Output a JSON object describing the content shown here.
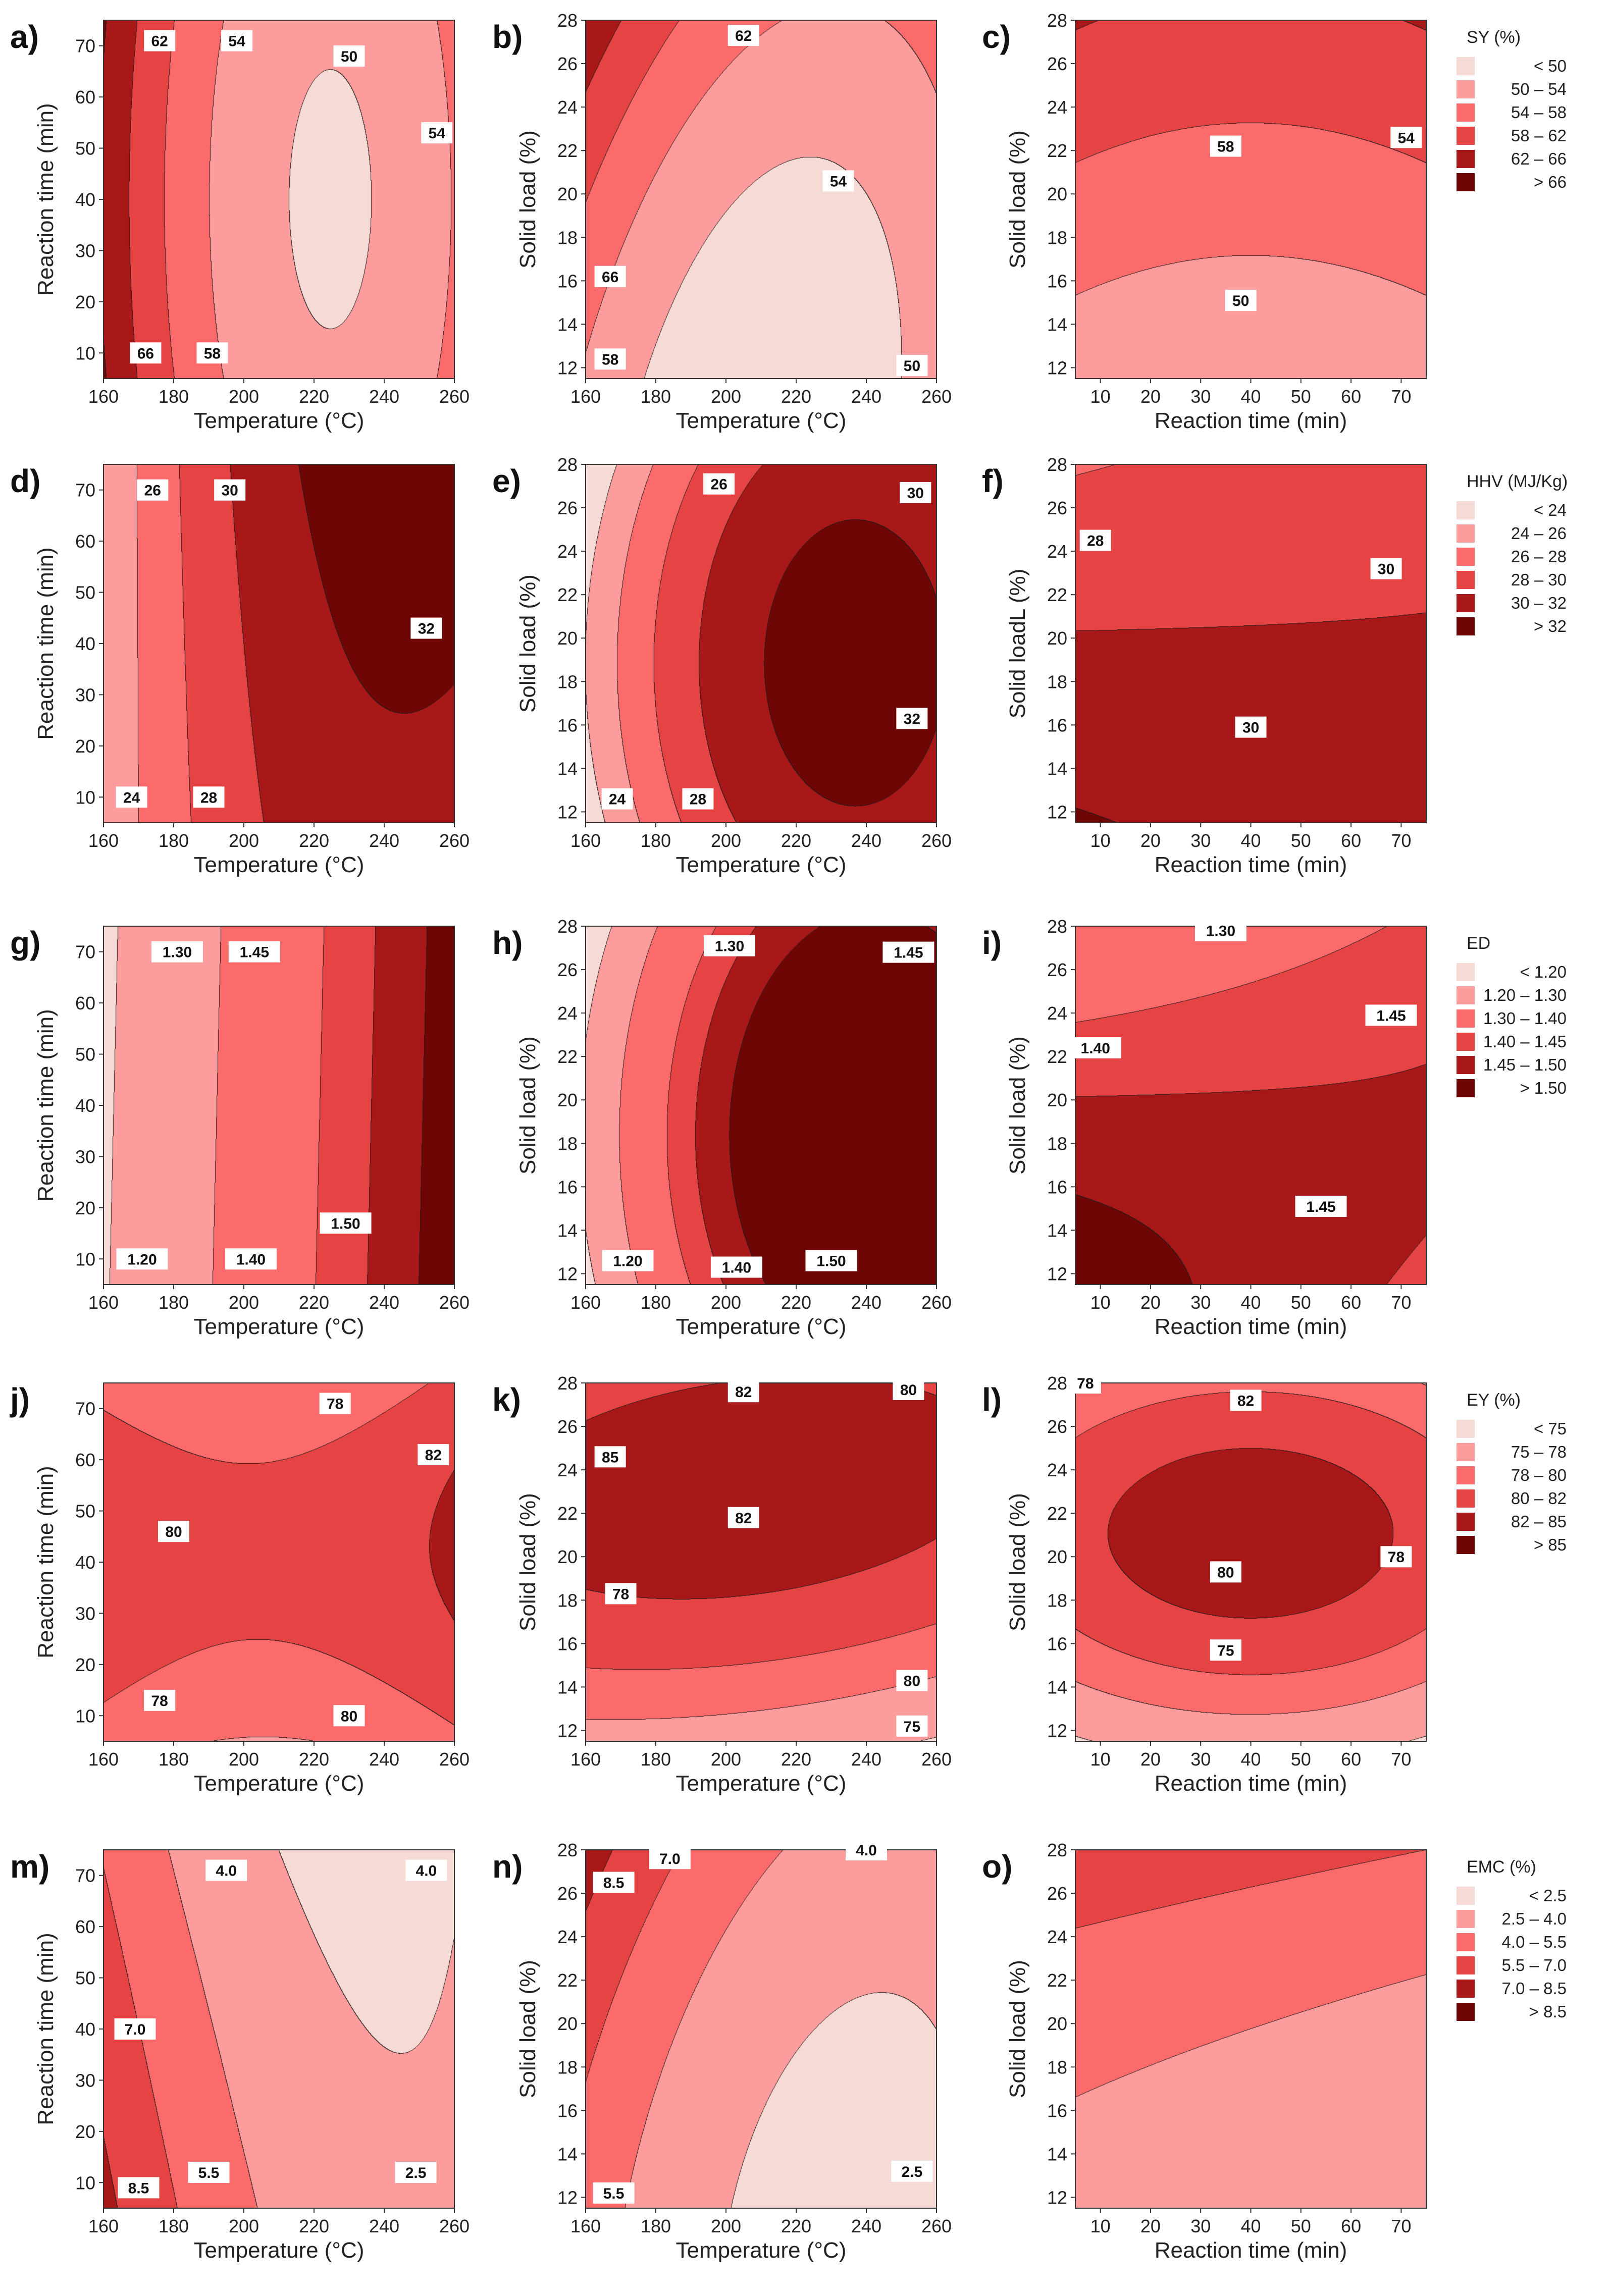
{
  "figure": {
    "palette": [
      "#f5dad5",
      "#fc9c9c",
      "#fc6b6b",
      "#e64444",
      "#a81818",
      "#6f0606"
    ],
    "line_color": "#1a1a1a",
    "legends": [
      {
        "row": 0,
        "title": "SY (%)",
        "items": [
          "<  50",
          "50  –  54",
          "54  –  58",
          "58  –  62",
          "62  –  66",
          ">  66"
        ]
      },
      {
        "row": 1,
        "title": "HHV (MJ/Kg)",
        "items": [
          "<  24",
          "24  –  26",
          "26  –  28",
          "28  –  30",
          "30  –  32",
          ">  32"
        ]
      },
      {
        "row": 2,
        "title": "ED",
        "items": [
          "<  1.20",
          "1.20  –  1.30",
          "1.30  –  1.40",
          "1.40  –  1.45",
          "1.45  –  1.50",
          ">  1.50"
        ]
      },
      {
        "row": 3,
        "title": "EY (%)",
        "items": [
          "<  75",
          "75  –  78",
          "78  –  80",
          "80  –  82",
          "82  –  85",
          ">  85"
        ]
      },
      {
        "row": 4,
        "title": "EMC (%)",
        "items": [
          "<  2.5",
          "2.5  –  4.0",
          "4.0  –  5.5",
          "5.5  –  7.0",
          "7.0  –  8.5",
          ">  8.5"
        ]
      }
    ]
  },
  "chart_data": [
    {
      "id": "a",
      "panel_label": "a)",
      "type": "contour",
      "xlabel": "Temperature (°C)",
      "ylabel": "Reaction time (min)",
      "xlim": [
        160,
        260
      ],
      "ylim": [
        5,
        75
      ],
      "xticks": [
        160,
        180,
        200,
        220,
        240,
        260
      ],
      "yticks": [
        10,
        20,
        30,
        40,
        50,
        60,
        70
      ],
      "response": "SY (%)",
      "field": {
        "kind": "quad",
        "c": 50.3,
        "x": -5.6,
        "y": 0,
        "xx": 9.5,
        "yy": 1.0,
        "xy": 0
      },
      "levels": [
        50,
        54,
        58,
        62,
        66
      ],
      "contour_labels": [
        {
          "text": "62",
          "x": 176,
          "y": 71
        },
        {
          "text": "54",
          "x": 198,
          "y": 71
        },
        {
          "text": "50",
          "x": 230,
          "y": 68
        },
        {
          "text": "54",
          "x": 255,
          "y": 53
        },
        {
          "text": "66",
          "x": 172,
          "y": 10
        },
        {
          "text": "58",
          "x": 191,
          "y": 10
        }
      ]
    },
    {
      "id": "b",
      "panel_label": "b)",
      "type": "contour",
      "xlabel": "Temperature (°C)",
      "ylabel": "Solid load (%)",
      "xlim": [
        160,
        260
      ],
      "ylim": [
        11.5,
        28
      ],
      "xticks": [
        160,
        180,
        200,
        220,
        240,
        260
      ],
      "yticks": [
        12,
        14,
        16,
        18,
        20,
        22,
        24,
        26,
        28
      ],
      "response": "SY (%)",
      "field": {
        "kind": "quad",
        "c": 49.5,
        "x": -2.8,
        "y": 3.8,
        "xx": 5.8,
        "yy": 1.2,
        "xy": -2.0
      },
      "levels": [
        50,
        54,
        58,
        62,
        66
      ],
      "contour_labels": [
        {
          "text": "62",
          "x": 205,
          "y": 27.3
        },
        {
          "text": "54",
          "x": 232,
          "y": 20.6
        },
        {
          "text": "66",
          "x": 167,
          "y": 16.2
        },
        {
          "text": "58",
          "x": 167,
          "y": 12.4
        },
        {
          "text": "50",
          "x": 253,
          "y": 12.1
        }
      ]
    },
    {
      "id": "c",
      "panel_label": "c)",
      "type": "contour",
      "xlabel": "Reaction time (min)",
      "ylabel": "Solid load (%)",
      "xlim": [
        5,
        75
      ],
      "ylim": [
        11.5,
        28
      ],
      "xticks": [
        10,
        20,
        30,
        40,
        50,
        60,
        70
      ],
      "yticks": [
        12,
        14,
        16,
        18,
        20,
        22,
        24,
        26,
        28
      ],
      "response": "SY (%)",
      "field": {
        "kind": "quad",
        "c": 55.7,
        "x": 0,
        "y": 5.4,
        "xx": 1.2,
        "yy": 0,
        "xy": 0
      },
      "levels": [
        50,
        54,
        58,
        62,
        66
      ],
      "contour_labels": [
        {
          "text": "58",
          "x": 35,
          "y": 22.2
        },
        {
          "text": "54",
          "x": 71,
          "y": 22.6
        },
        {
          "text": "50",
          "x": 38,
          "y": 15.1
        }
      ]
    },
    {
      "id": "d",
      "panel_label": "d)",
      "type": "contour",
      "xlabel": "Temperature (°C)",
      "ylabel": "Reaction time (min)",
      "xlim": [
        160,
        260
      ],
      "ylim": [
        5,
        75
      ],
      "xticks": [
        160,
        180,
        200,
        220,
        240,
        260
      ],
      "yticks": [
        10,
        20,
        30,
        40,
        50,
        60,
        70
      ],
      "response": "HHV (MJ/Kg)",
      "field": {
        "kind": "quad",
        "c": 30.9,
        "x": 4.0,
        "y": 0.6,
        "xx": -2.6,
        "yy": 0,
        "xy": 0.7
      },
      "levels": [
        24,
        26,
        28,
        30,
        32
      ],
      "contour_labels": [
        {
          "text": "26",
          "x": 174,
          "y": 70
        },
        {
          "text": "30",
          "x": 196,
          "y": 70
        },
        {
          "text": "32",
          "x": 252,
          "y": 43
        },
        {
          "text": "24",
          "x": 168,
          "y": 10
        },
        {
          "text": "28",
          "x": 190,
          "y": 10
        }
      ]
    },
    {
      "id": "e",
      "panel_label": "e)",
      "type": "contour",
      "xlabel": "Temperature (°C)",
      "ylabel": "Solid load (%)",
      "xlim": [
        160,
        260
      ],
      "ylim": [
        11.5,
        28
      ],
      "xticks": [
        160,
        180,
        200,
        220,
        240,
        260
      ],
      "yticks": [
        12,
        14,
        16,
        18,
        20,
        22,
        24,
        26,
        28
      ],
      "response": "HHV (MJ/Kg)",
      "field": {
        "kind": "quad",
        "c": 31.9,
        "x": 4.1,
        "y": -0.35,
        "xx": -3.8,
        "yy": -1.6,
        "xy": 0
      },
      "levels": [
        24,
        26,
        28,
        30,
        32
      ],
      "contour_labels": [
        {
          "text": "26",
          "x": 198,
          "y": 27.1
        },
        {
          "text": "30",
          "x": 254,
          "y": 26.7
        },
        {
          "text": "32",
          "x": 253,
          "y": 16.3
        },
        {
          "text": "24",
          "x": 169,
          "y": 12.6
        },
        {
          "text": "28",
          "x": 192,
          "y": 12.6
        }
      ]
    },
    {
      "id": "f",
      "panel_label": "f)",
      "type": "contour",
      "xlabel": "Reaction time (min)",
      "ylabel": "Solid loadL (%)",
      "xlim": [
        5,
        75
      ],
      "ylim": [
        11.5,
        28
      ],
      "xticks": [
        10,
        20,
        30,
        40,
        50,
        60,
        70
      ],
      "yticks": [
        12,
        14,
        16,
        18,
        20,
        22,
        24,
        26,
        28
      ],
      "response": "HHV (MJ/Kg)",
      "field": {
        "kind": "quad",
        "c": 30.15,
        "x": 0,
        "y": -1.5,
        "xx": 0,
        "yy": -0.15,
        "xy": 0.65
      },
      "levels": [
        24,
        26,
        28,
        30,
        32
      ],
      "contour_labels": [
        {
          "text": "28",
          "x": 9,
          "y": 24.5
        },
        {
          "text": "30",
          "x": 67,
          "y": 23.2
        },
        {
          "text": "30",
          "x": 40,
          "y": 15.9
        }
      ]
    },
    {
      "id": "g",
      "panel_label": "g)",
      "type": "contour",
      "xlabel": "Temperature (°C)",
      "ylabel": "Reaction time (min)",
      "xlim": [
        160,
        260
      ],
      "ylim": [
        5,
        75
      ],
      "xticks": [
        160,
        180,
        200,
        220,
        240,
        260
      ],
      "yticks": [
        10,
        20,
        30,
        40,
        50,
        60,
        70
      ],
      "response": "ED",
      "field": {
        "kind": "lin",
        "c": 1.36,
        "x": 0.17,
        "y": -0.004
      },
      "levels": [
        1.2,
        1.3,
        1.4,
        1.45,
        1.5
      ],
      "contour_labels": [
        {
          "text": "1.30",
          "x": 181,
          "y": 70
        },
        {
          "text": "1.45",
          "x": 203,
          "y": 70
        },
        {
          "text": "1.20",
          "x": 171,
          "y": 10
        },
        {
          "text": "1.40",
          "x": 202,
          "y": 10
        },
        {
          "text": "1.50",
          "x": 229,
          "y": 17
        }
      ]
    },
    {
      "id": "h",
      "panel_label": "h)",
      "type": "contour",
      "xlabel": "Temperature (°C)",
      "ylabel": "Solid load (%)",
      "xlim": [
        160,
        260
      ],
      "ylim": [
        11.5,
        28
      ],
      "xticks": [
        160,
        180,
        200,
        220,
        240,
        260
      ],
      "yticks": [
        12,
        14,
        16,
        18,
        20,
        22,
        24,
        26,
        28
      ],
      "response": "ED",
      "field": {
        "kind": "quad",
        "c": 1.535,
        "x": 0.18,
        "y": -0.02,
        "xx": -0.14,
        "yy": -0.06,
        "xy": 0
      },
      "levels": [
        1.2,
        1.3,
        1.4,
        1.45,
        1.5
      ],
      "contour_labels": [
        {
          "text": "1.30",
          "x": 201,
          "y": 27.1
        },
        {
          "text": "1.45",
          "x": 252,
          "y": 26.8
        },
        {
          "text": "1.20",
          "x": 172,
          "y": 12.6
        },
        {
          "text": "1.40",
          "x": 203,
          "y": 12.3
        },
        {
          "text": "1.50",
          "x": 230,
          "y": 12.6
        }
      ]
    },
    {
      "id": "i",
      "panel_label": "i)",
      "type": "contour",
      "xlabel": "Reaction time (min)",
      "ylabel": "Solid load (%)",
      "xlim": [
        5,
        75
      ],
      "ylim": [
        11.5,
        28
      ],
      "xticks": [
        10,
        20,
        30,
        40,
        50,
        60,
        70
      ],
      "yticks": [
        12,
        14,
        16,
        18,
        20,
        22,
        24,
        26,
        28
      ],
      "response": "ED",
      "field": {
        "kind": "quad",
        "c": 1.455,
        "x": 0,
        "y": -0.06,
        "xx": 0,
        "yy": -0.03,
        "xy": 0.045
      },
      "levels": [
        1.2,
        1.3,
        1.4,
        1.45,
        1.5
      ],
      "contour_labels": [
        {
          "text": "1.30",
          "x": 34,
          "y": 27.8
        },
        {
          "text": "1.40",
          "x": 9,
          "y": 22.4
        },
        {
          "text": "1.45",
          "x": 68,
          "y": 23.9
        },
        {
          "text": "1.45",
          "x": 54,
          "y": 15.1
        }
      ]
    },
    {
      "id": "j",
      "panel_label": "j)",
      "type": "contour",
      "xlabel": "Temperature (°C)",
      "ylabel": "Reaction time (min)",
      "xlim": [
        160,
        260
      ],
      "ylim": [
        5,
        75
      ],
      "xticks": [
        160,
        180,
        200,
        220,
        240,
        260
      ],
      "yticks": [
        10,
        20,
        30,
        40,
        50,
        60,
        70
      ],
      "response": "EY (%)",
      "field": {
        "kind": "quad",
        "c": 80.6,
        "x": 0.4,
        "y": 0.3,
        "xx": 1.4,
        "yy": -2.4,
        "xy": 0.15
      },
      "levels": [
        75,
        78,
        80,
        82,
        85
      ],
      "contour_labels": [
        {
          "text": "78",
          "x": 226,
          "y": 71
        },
        {
          "text": "82",
          "x": 254,
          "y": 61
        },
        {
          "text": "80",
          "x": 180,
          "y": 46
        },
        {
          "text": "78",
          "x": 176,
          "y": 13
        },
        {
          "text": "80",
          "x": 230,
          "y": 10
        }
      ]
    },
    {
      "id": "k",
      "panel_label": "k)",
      "type": "contour",
      "xlabel": "Temperature (°C)",
      "ylabel": "Solid load (%)",
      "xlim": [
        160,
        260
      ],
      "ylim": [
        11.5,
        28
      ],
      "xticks": [
        160,
        180,
        200,
        220,
        240,
        260
      ],
      "yticks": [
        12,
        14,
        16,
        18,
        20,
        22,
        24,
        26,
        28
      ],
      "response": "EY (%)",
      "field": {
        "kind": "quad",
        "c": 82.6,
        "x": -0.4,
        "y": 2.8,
        "xx": -0.6,
        "yy": -3.3,
        "xy": 0.7
      },
      "levels": [
        75,
        78,
        80,
        82,
        85
      ],
      "contour_labels": [
        {
          "text": "82",
          "x": 205,
          "y": 27.6
        },
        {
          "text": "80",
          "x": 252,
          "y": 27.7
        },
        {
          "text": "85",
          "x": 167,
          "y": 24.6
        },
        {
          "text": "82",
          "x": 205,
          "y": 21.8
        },
        {
          "text": "78",
          "x": 170,
          "y": 18.3
        },
        {
          "text": "80",
          "x": 253,
          "y": 14.3
        },
        {
          "text": "75",
          "x": 253,
          "y": 12.2
        }
      ]
    },
    {
      "id": "l",
      "panel_label": "l)",
      "type": "contour",
      "xlabel": "Reaction time (min)",
      "ylabel": "Solid load (%)",
      "xlim": [
        5,
        75
      ],
      "ylim": [
        11.5,
        28
      ],
      "xticks": [
        10,
        20,
        30,
        40,
        50,
        60,
        70
      ],
      "yticks": [
        12,
        14,
        16,
        18,
        20,
        22,
        24,
        26,
        28
      ],
      "response": "EY (%)",
      "field": {
        "kind": "quad",
        "c": 83.0,
        "x": 0,
        "y": 1.6,
        "xx": -1.7,
        "yy": -5.0,
        "xy": 0
      },
      "levels": [
        75,
        78,
        80,
        82,
        85
      ],
      "contour_labels": [
        {
          "text": "78",
          "x": 7,
          "y": 28.0
        },
        {
          "text": "82",
          "x": 39,
          "y": 27.2
        },
        {
          "text": "80",
          "x": 35,
          "y": 19.3
        },
        {
          "text": "78",
          "x": 69,
          "y": 20.0
        },
        {
          "text": "75",
          "x": 35,
          "y": 15.7
        }
      ]
    },
    {
      "id": "m",
      "panel_label": "m)",
      "type": "contour",
      "xlabel": "Temperature (°C)",
      "ylabel": "Reaction time (min)",
      "xlim": [
        160,
        260
      ],
      "ylim": [
        5,
        75
      ],
      "xticks": [
        160,
        180,
        200,
        220,
        240,
        260
      ],
      "yticks": [
        10,
        20,
        30,
        40,
        50,
        60,
        70
      ],
      "response": "EMC (%)",
      "field": {
        "kind": "quad",
        "c": 3.1,
        "x": -1.9,
        "y": -0.6,
        "xx": 1.4,
        "yy": 0,
        "xy": 0.4
      },
      "levels": [
        2.5,
        4.0,
        5.5,
        7.0,
        8.5
      ],
      "contour_labels": [
        {
          "text": "4.0",
          "x": 195,
          "y": 71
        },
        {
          "text": "4.0",
          "x": 252,
          "y": 71
        },
        {
          "text": "7.0",
          "x": 169,
          "y": 40
        },
        {
          "text": "8.5",
          "x": 170,
          "y": 9
        },
        {
          "text": "5.5",
          "x": 190,
          "y": 12
        },
        {
          "text": "2.5",
          "x": 249,
          "y": 12
        }
      ]
    },
    {
      "id": "n",
      "panel_label": "n)",
      "type": "contour",
      "xlabel": "Temperature (°C)",
      "ylabel": "Solid load (%)",
      "xlim": [
        160,
        260
      ],
      "ylim": [
        11.5,
        28
      ],
      "xticks": [
        160,
        180,
        200,
        220,
        240,
        260
      ],
      "yticks": [
        12,
        14,
        16,
        18,
        20,
        22,
        24,
        26,
        28
      ],
      "response": "EMC (%)",
      "field": {
        "kind": "quad",
        "c": 2.9,
        "x": -1.7,
        "y": 1.0,
        "xx": 1.3,
        "yy": 0.35,
        "xy": -0.45
      },
      "levels": [
        2.5,
        4.0,
        5.5,
        7.0,
        8.5
      ],
      "contour_labels": [
        {
          "text": "7.0",
          "x": 184,
          "y": 27.6
        },
        {
          "text": "8.5",
          "x": 168,
          "y": 26.5
        },
        {
          "text": "4.0",
          "x": 240,
          "y": 28.0
        },
        {
          "text": "5.5",
          "x": 168,
          "y": 12.2
        },
        {
          "text": "2.5",
          "x": 253,
          "y": 13.2
        }
      ]
    },
    {
      "id": "o",
      "panel_label": "o)",
      "type": "contour",
      "xlabel": "Reaction time (min)",
      "ylabel": "Solid load (%)",
      "xlim": [
        5,
        75
      ],
      "ylim": [
        11.5,
        28
      ],
      "xticks": [
        10,
        20,
        30,
        40,
        50,
        60,
        70
      ],
      "yticks": [
        12,
        14,
        16,
        18,
        20,
        22,
        24,
        26,
        28
      ],
      "response": "EMC (%)",
      "field": {
        "kind": "quad",
        "c": 4.0,
        "x": -0.5,
        "y": 1.5,
        "xx": 0,
        "yy": 0.5,
        "xy": 0
      },
      "levels": [
        2.5,
        4.0,
        5.5,
        7.0,
        8.5
      ],
      "contour_labels": []
    }
  ]
}
